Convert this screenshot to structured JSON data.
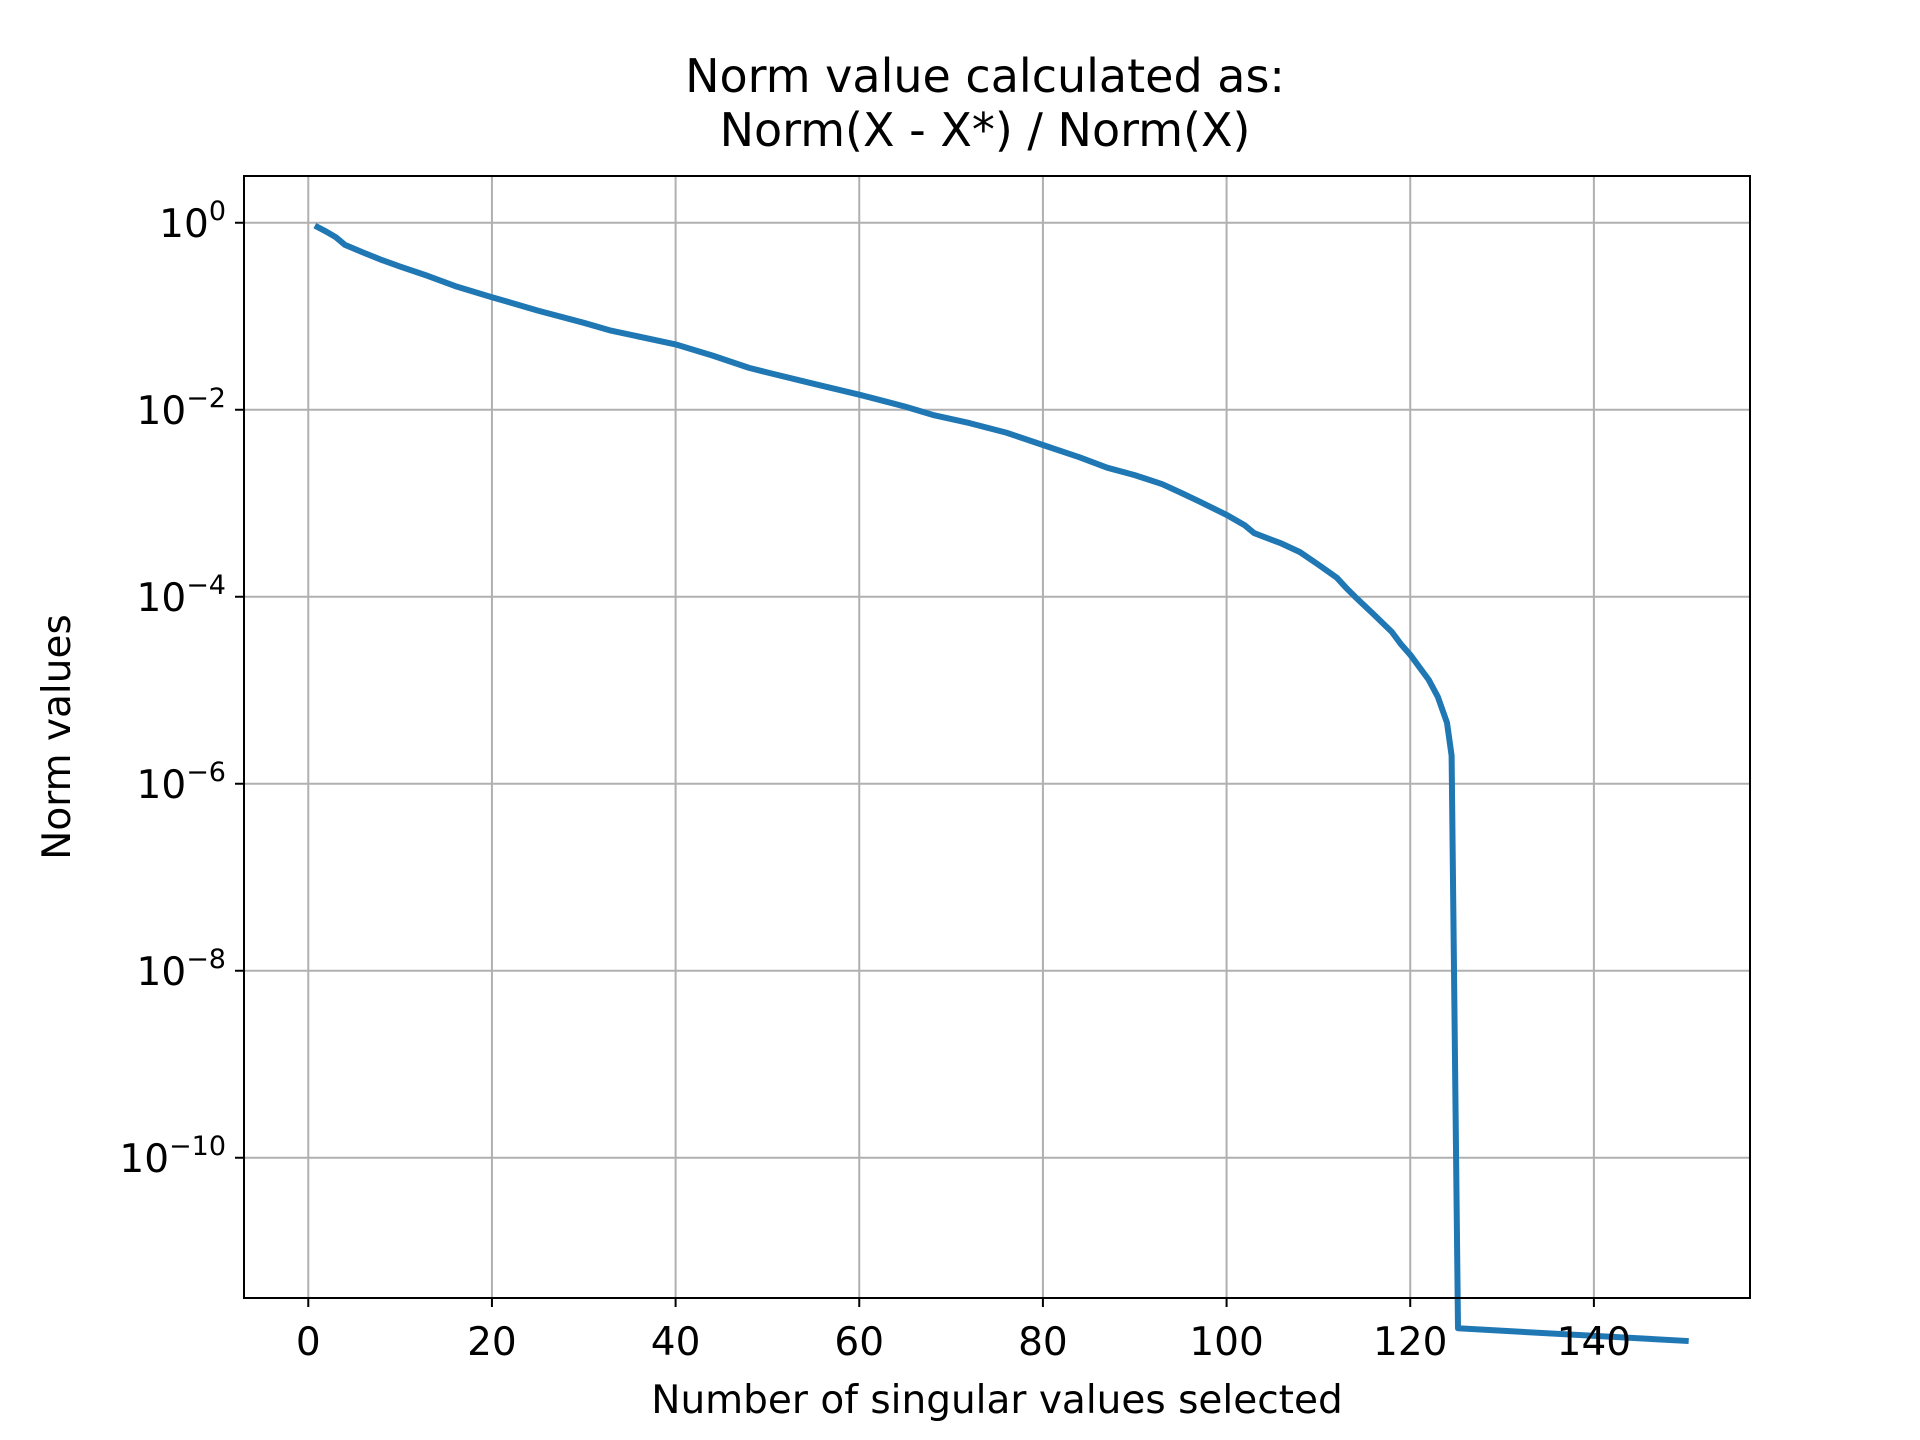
{
  "chart_data": {
    "type": "line",
    "title_lines": [
      "Norm value calculated as:",
      "Norm(X - X*) / Norm(X)"
    ],
    "xlabel": "Number of singular values selected",
    "ylabel": "Norm values",
    "xlim": [
      -7,
      157
    ],
    "ylim_log10": [
      -11.5,
      0.5
    ],
    "yscale": "log",
    "grid": true,
    "x_ticks": [
      0,
      20,
      40,
      60,
      80,
      100,
      120,
      140
    ],
    "y_ticks": [
      {
        "base": "10",
        "exp": "0",
        "log10": 0
      },
      {
        "base": "10",
        "exp": "−2",
        "log10": -2
      },
      {
        "base": "10",
        "exp": "−4",
        "log10": -4
      },
      {
        "base": "10",
        "exp": "−6",
        "log10": -6
      },
      {
        "base": "10",
        "exp": "−8",
        "log10": -8
      },
      {
        "base": "10",
        "exp": "−10",
        "log10": -10
      }
    ],
    "series": [
      {
        "color": "#1f77b4",
        "points": [
          [
            1,
            0.9
          ],
          [
            2,
            0.8
          ],
          [
            3,
            0.7
          ],
          [
            4,
            0.58
          ],
          [
            6,
            0.48
          ],
          [
            8,
            0.4
          ],
          [
            10,
            0.34
          ],
          [
            13,
            0.27
          ],
          [
            16,
            0.21
          ],
          [
            20,
            0.16
          ],
          [
            25,
            0.115
          ],
          [
            30,
            0.085
          ],
          [
            33,
            0.07
          ],
          [
            40,
            0.05
          ],
          [
            44,
            0.038
          ],
          [
            48,
            0.028
          ],
          [
            50,
            0.025
          ],
          [
            55,
            0.019
          ],
          [
            60,
            0.0145
          ],
          [
            65,
            0.0108
          ],
          [
            68,
            0.0088
          ],
          [
            72,
            0.0072
          ],
          [
            76,
            0.0057
          ],
          [
            80,
            0.0042
          ],
          [
            84,
            0.0031
          ],
          [
            87,
            0.0024
          ],
          [
            90,
            0.002
          ],
          [
            93,
            0.0016
          ],
          [
            95,
            0.0013
          ],
          [
            97,
            0.00105
          ],
          [
            100,
            0.00075
          ],
          [
            102,
            0.00058
          ],
          [
            103,
            0.00048
          ],
          [
            106,
            0.00037
          ],
          [
            108,
            0.0003
          ],
          [
            110,
            0.00022
          ],
          [
            112,
            0.00016
          ],
          [
            113,
            0.000125
          ],
          [
            114,
            0.0001
          ],
          [
            116,
            6.5e-05
          ],
          [
            118,
            4.2e-05
          ],
          [
            119,
            3.1e-05
          ],
          [
            120,
            2.4e-05
          ],
          [
            122,
            1.3e-05
          ],
          [
            123,
            8.5e-06
          ],
          [
            124,
            4.5e-06
          ],
          [
            124.5,
            2e-06
          ],
          [
            125.2,
            1.5e-12
          ],
          [
            150,
            1.1e-12
          ]
        ]
      }
    ]
  }
}
